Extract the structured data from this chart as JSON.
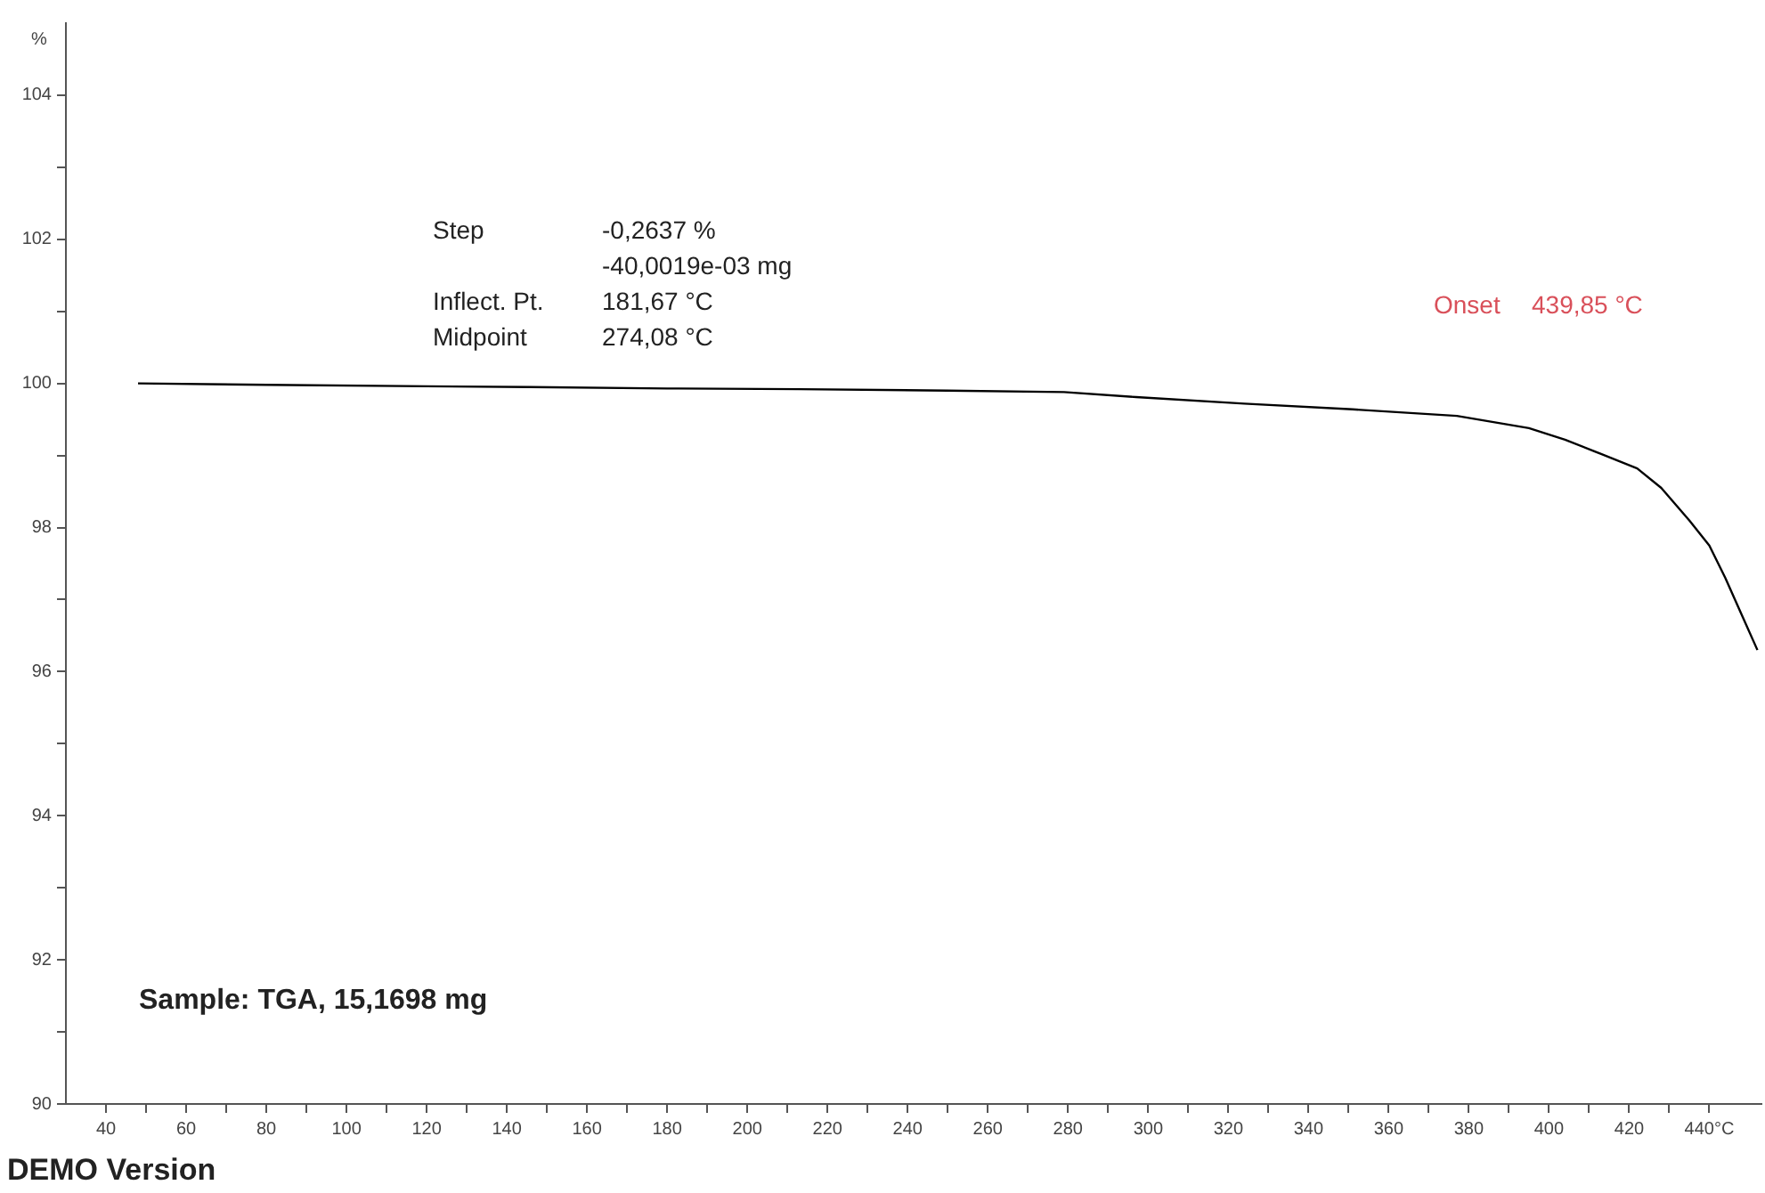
{
  "chart_data": {
    "type": "line",
    "ylabel": "%",
    "x": [
      48,
      80,
      120,
      146,
      180,
      213,
      250,
      279,
      297,
      324,
      351,
      377,
      395,
      404,
      413,
      422,
      428,
      435,
      440,
      444,
      448,
      452
    ],
    "series": [
      {
        "color": "#000000",
        "values": [
          100.0,
          99.98,
          99.96,
          99.95,
          99.93,
          99.92,
          99.9,
          99.88,
          99.81,
          99.72,
          99.64,
          99.55,
          99.38,
          99.22,
          99.02,
          98.82,
          98.55,
          98.1,
          97.75,
          97.3,
          96.8,
          96.3
        ]
      }
    ],
    "xlim": [
      30,
      453
    ],
    "xticks": [
      40,
      {
        "value": 50,
        "label": null
      },
      60,
      {
        "value": 70,
        "label": null
      },
      80,
      {
        "value": 90,
        "label": null
      },
      100,
      {
        "value": 110,
        "label": null
      },
      120,
      {
        "value": 130,
        "label": null
      },
      140,
      {
        "value": 150,
        "label": null
      },
      160,
      {
        "value": 170,
        "label": null
      },
      180,
      {
        "value": 190,
        "label": null
      },
      200,
      {
        "value": 210,
        "label": null
      },
      220,
      {
        "value": 230,
        "label": null
      },
      240,
      {
        "value": 250,
        "label": null
      },
      260,
      {
        "value": 270,
        "label": null
      },
      280,
      {
        "value": 290,
        "label": null
      },
      300,
      {
        "value": 310,
        "label": null
      },
      320,
      {
        "value": 330,
        "label": null
      },
      340,
      {
        "value": 350,
        "label": null
      },
      360,
      {
        "value": 370,
        "label": null
      },
      380,
      {
        "value": 390,
        "label": null
      },
      400,
      {
        "value": 410,
        "label": null
      },
      420,
      {
        "value": 430,
        "label": null
      },
      {
        "value": 440,
        "label": "440°C"
      }
    ],
    "ylim": [
      90,
      105
    ],
    "yticks": [
      90,
      {
        "value": 91,
        "label": null
      },
      92,
      {
        "value": 93,
        "label": null
      },
      94,
      {
        "value": 95,
        "label": null
      },
      96,
      {
        "value": 97,
        "label": null
      },
      98,
      {
        "value": 99,
        "label": null
      },
      100,
      {
        "value": 101,
        "label": null
      },
      102,
      {
        "value": 103,
        "label": null
      },
      104
    ],
    "marker": "none",
    "line_style": "solid",
    "grid": false,
    "legend": false,
    "annotations": [
      "Step",
      "-0,2637 %",
      "-40,0019e-03 mg",
      "Inflect. Pt.",
      "181,67 °C",
      "Midpoint",
      "274,08 °C",
      "Onset",
      "439,85 °C",
      "Sample: TGA, 15,1698 mg",
      "DEMO Version"
    ]
  }
}
